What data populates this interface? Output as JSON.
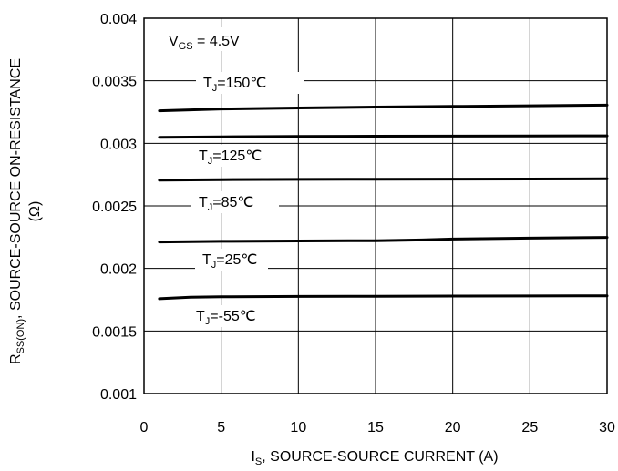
{
  "chart_data": {
    "type": "line",
    "xlabel": {
      "main": "I",
      "sub": "S",
      "rest": ", SOURCE-SOURCE CURRENT (A)"
    },
    "ylabel": {
      "main": "R",
      "sub": "SS(ON)",
      "rest": ", SOURCE-SOURCE ON-RESISTANCE",
      "line2": "(Ω)"
    },
    "xlim": [
      0,
      30
    ],
    "ylim": [
      0.001,
      0.004
    ],
    "x_ticks": [
      "0",
      "5",
      "10",
      "15",
      "20",
      "25",
      "30"
    ],
    "y_ticks": [
      "0.001",
      "0.0015",
      "0.002",
      "0.0025",
      "0.003",
      "0.0035",
      "0.004"
    ],
    "grid": true,
    "condition": {
      "main": "V",
      "sub": "GS",
      "rest": " = 4.5V"
    },
    "series": [
      {
        "name": "150℃",
        "label": {
          "main": "T",
          "sub": "J",
          "rest": "=150℃"
        },
        "x": [
          1,
          5,
          10,
          15,
          20,
          25,
          30
        ],
        "y": [
          0.00326,
          0.003275,
          0.003283,
          0.00329,
          0.003295,
          0.0033,
          0.003305
        ]
      },
      {
        "name": "125℃",
        "label": {
          "main": "T",
          "sub": "J",
          "rest": "=125℃"
        },
        "x": [
          1,
          5,
          10,
          15,
          20,
          25,
          30
        ],
        "y": [
          0.003048,
          0.003052,
          0.003055,
          0.003057,
          0.003058,
          0.003059,
          0.00306
        ]
      },
      {
        "name": "85℃",
        "label": {
          "main": "T",
          "sub": "J",
          "rest": "=85℃"
        },
        "x": [
          1,
          5,
          10,
          15,
          20,
          25,
          30
        ],
        "y": [
          0.002705,
          0.00271,
          0.002712,
          0.002713,
          0.002714,
          0.002715,
          0.002716
        ]
      },
      {
        "name": "25℃",
        "label": {
          "main": "T",
          "sub": "J",
          "rest": "=25℃"
        },
        "x": [
          1,
          5,
          10,
          15,
          18,
          20,
          25,
          30
        ],
        "y": [
          0.002212,
          0.002217,
          0.00222,
          0.002222,
          0.002228,
          0.002235,
          0.002242,
          0.002248
        ]
      },
      {
        "name": "-55℃",
        "label": {
          "main": "T",
          "sub": "J",
          "rest": "=-55℃"
        },
        "x": [
          1,
          3,
          5,
          10,
          15,
          20,
          25,
          30
        ],
        "y": [
          0.001758,
          0.00177,
          0.001773,
          0.001776,
          0.001778,
          0.001779,
          0.00178,
          0.001781
        ]
      }
    ]
  }
}
